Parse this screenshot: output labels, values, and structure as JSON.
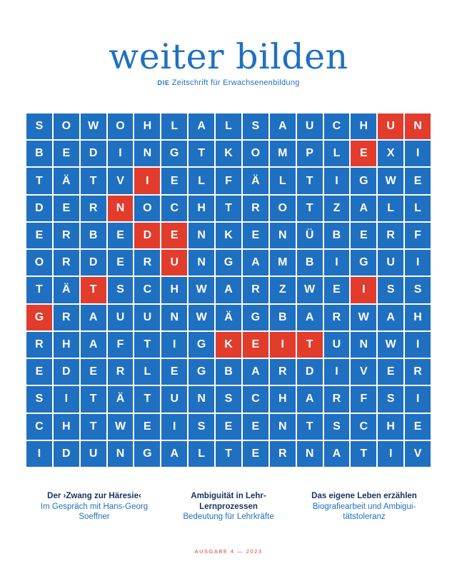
{
  "masthead": {
    "title": "weiter bilden",
    "subtitle_prefix": "DIE",
    "subtitle": "Zeitschrift für Erwachsenenbildung"
  },
  "grid": {
    "rows": [
      "SOWOHLALSAUCHUN",
      "BEDINGTKOMPLEXI",
      "TÄTVIELFÄLTIGWE",
      "DERNOCHTROTZALL",
      "ERBEDENKENÜBERF",
      "ORDERUNGAMBIGUI",
      "TÄTSCHWARZWEISS",
      "GRAUUNWÄGBARWAH",
      "RHAFTIGKEITUNWI",
      "EDERLEGBARDIVER",
      "SITÄTUNSCHARFSI",
      "CHTWEISEENTSCHE",
      "IDUNGALTERNATIV"
    ],
    "highlighted": [
      [
        0,
        13
      ],
      [
        0,
        14
      ],
      [
        1,
        12
      ],
      [
        2,
        4
      ],
      [
        3,
        3
      ],
      [
        4,
        4
      ],
      [
        4,
        5
      ],
      [
        5,
        5
      ],
      [
        6,
        2
      ],
      [
        6,
        12
      ],
      [
        7,
        0
      ],
      [
        8,
        7
      ],
      [
        8,
        8
      ],
      [
        8,
        9
      ],
      [
        8,
        10
      ]
    ],
    "colors": {
      "cell": "#1f70c1",
      "highlight": "#e23c2d",
      "letter": "#ffffff"
    }
  },
  "articles": [
    {
      "head": "Der ›Zwang zur Häresie‹",
      "sub": "Im Gespräch mit Hans-Georg Soeffner"
    },
    {
      "head": "Ambiguität in Lehr-Lernprozessen",
      "sub": "Bedeutung für Lehrkräfte"
    },
    {
      "head": "Das eigene Leben erzählen",
      "sub": "Biografiearbeit und Ambigui-tätstoleranz"
    }
  ],
  "footer": {
    "issue": "AUSGABE 4 — 2023"
  }
}
